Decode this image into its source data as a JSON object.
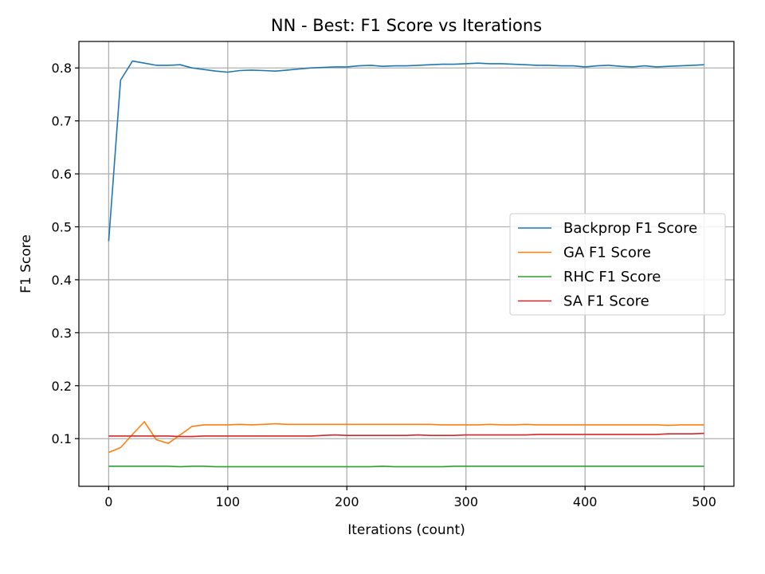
{
  "chart_data": {
    "type": "line",
    "title": "NN - Best: F1 Score vs Iterations",
    "xlabel": "Iterations (count)",
    "ylabel": "F1 Score",
    "xlim": [
      -25,
      525
    ],
    "ylim": [
      0.01,
      0.85
    ],
    "xticks": [
      0,
      100,
      200,
      300,
      400,
      500
    ],
    "yticks": [
      0.1,
      0.2,
      0.3,
      0.4,
      0.5,
      0.6,
      0.7,
      0.8
    ],
    "xtick_labels": [
      "0",
      "100",
      "200",
      "300",
      "400",
      "500"
    ],
    "ytick_labels": [
      "0.1",
      "0.2",
      "0.3",
      "0.4",
      "0.5",
      "0.6",
      "0.7",
      "0.8"
    ],
    "grid": true,
    "legend_position": "center-right",
    "x": [
      0,
      10,
      20,
      30,
      40,
      50,
      60,
      70,
      80,
      90,
      100,
      110,
      120,
      130,
      140,
      150,
      160,
      170,
      180,
      190,
      200,
      210,
      220,
      230,
      240,
      250,
      260,
      270,
      280,
      290,
      300,
      310,
      320,
      330,
      340,
      350,
      360,
      370,
      380,
      390,
      400,
      410,
      420,
      430,
      440,
      450,
      460,
      470,
      480,
      490,
      500
    ],
    "series": [
      {
        "name": "Backprop F1 Score",
        "color": "#1f77b4",
        "values": [
          0.473,
          0.777,
          0.813,
          0.809,
          0.805,
          0.805,
          0.806,
          0.8,
          0.797,
          0.794,
          0.792,
          0.795,
          0.796,
          0.795,
          0.794,
          0.796,
          0.798,
          0.8,
          0.801,
          0.802,
          0.802,
          0.804,
          0.805,
          0.803,
          0.804,
          0.804,
          0.805,
          0.806,
          0.807,
          0.807,
          0.808,
          0.809,
          0.808,
          0.808,
          0.807,
          0.806,
          0.805,
          0.805,
          0.804,
          0.804,
          0.802,
          0.804,
          0.805,
          0.803,
          0.802,
          0.804,
          0.802,
          0.803,
          0.804,
          0.805,
          0.806
        ]
      },
      {
        "name": "GA F1 Score",
        "color": "#ff7f0e",
        "values": [
          0.074,
          0.083,
          0.108,
          0.132,
          0.098,
          0.091,
          0.107,
          0.123,
          0.126,
          0.126,
          0.126,
          0.127,
          0.126,
          0.127,
          0.128,
          0.127,
          0.127,
          0.127,
          0.127,
          0.127,
          0.127,
          0.127,
          0.127,
          0.127,
          0.127,
          0.127,
          0.127,
          0.127,
          0.126,
          0.126,
          0.126,
          0.126,
          0.127,
          0.126,
          0.126,
          0.127,
          0.126,
          0.126,
          0.126,
          0.126,
          0.126,
          0.126,
          0.126,
          0.126,
          0.126,
          0.126,
          0.126,
          0.125,
          0.126,
          0.126,
          0.126
        ]
      },
      {
        "name": "RHC F1 Score",
        "color": "#2ca02c",
        "values": [
          0.048,
          0.048,
          0.048,
          0.048,
          0.048,
          0.048,
          0.047,
          0.048,
          0.048,
          0.047,
          0.047,
          0.047,
          0.047,
          0.047,
          0.047,
          0.047,
          0.047,
          0.047,
          0.047,
          0.047,
          0.047,
          0.047,
          0.047,
          0.048,
          0.047,
          0.047,
          0.047,
          0.047,
          0.047,
          0.048,
          0.048,
          0.048,
          0.048,
          0.048,
          0.048,
          0.048,
          0.048,
          0.048,
          0.048,
          0.048,
          0.048,
          0.048,
          0.048,
          0.048,
          0.048,
          0.048,
          0.048,
          0.048,
          0.048,
          0.048,
          0.048
        ]
      },
      {
        "name": "SA F1 Score",
        "color": "#d62728",
        "values": [
          0.105,
          0.105,
          0.105,
          0.105,
          0.105,
          0.105,
          0.104,
          0.104,
          0.105,
          0.105,
          0.105,
          0.105,
          0.105,
          0.105,
          0.105,
          0.105,
          0.105,
          0.105,
          0.106,
          0.107,
          0.106,
          0.106,
          0.106,
          0.106,
          0.106,
          0.106,
          0.107,
          0.106,
          0.106,
          0.106,
          0.107,
          0.107,
          0.107,
          0.107,
          0.107,
          0.107,
          0.108,
          0.108,
          0.108,
          0.108,
          0.108,
          0.108,
          0.108,
          0.108,
          0.108,
          0.108,
          0.108,
          0.109,
          0.109,
          0.109,
          0.11
        ]
      }
    ]
  }
}
